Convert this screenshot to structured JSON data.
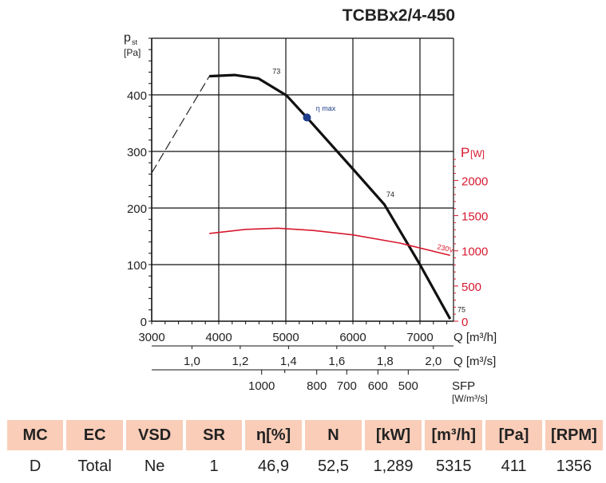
{
  "title": "TCBBx2/4-450",
  "chart_data": {
    "type": "line",
    "x_axis": {
      "label": "Q [m³/h]",
      "range": [
        3000,
        7500
      ],
      "ticks": [
        3000,
        4000,
        5000,
        6000,
        7000
      ]
    },
    "x_axis_secondary": {
      "label": "Q [m³/s]",
      "ticks": [
        "1,0",
        "1,2",
        "1,4",
        "1,6",
        "1,8",
        "2,0"
      ],
      "tick_values": [
        1.0,
        1.2,
        1.4,
        1.6,
        1.8,
        2.0
      ]
    },
    "sfp_axis": {
      "label": "SFP",
      "unit": "[W/m³/s]",
      "ticks": [
        "1000",
        "800",
        "700",
        "600",
        "500"
      ],
      "tick_values": [
        1000,
        800,
        700,
        600,
        500
      ]
    },
    "y_axis": {
      "label": "p",
      "label_sub": "st",
      "unit": "[Pa]",
      "range": [
        0,
        500
      ],
      "ticks": [
        0,
        100,
        200,
        300,
        400
      ]
    },
    "y_axis_right": {
      "label": "P",
      "unit": "[W]",
      "color": "#d7192f",
      "ticks": [
        0,
        500,
        1000,
        1500,
        2000
      ]
    },
    "grid": true,
    "series": [
      {
        "axis": "left",
        "style": "dashed",
        "color": "#222222",
        "x": [
          3000,
          3860
        ],
        "y": [
          262,
          433
        ]
      },
      {
        "axis": "left",
        "style": "solid",
        "color": "#111111",
        "x": [
          3860,
          4235,
          4590,
          5010,
          5320,
          6000,
          6470,
          7000,
          7450
        ],
        "y": [
          433,
          435,
          429,
          399,
          359,
          269,
          206,
          100,
          4
        ]
      },
      {
        "name": "230V",
        "axis": "right",
        "style": "solid",
        "color": "#d7192f",
        "x": [
          3860,
          4400,
          4880,
          5400,
          6000,
          6700,
          7450
        ],
        "y": [
          1247,
          1305,
          1322,
          1290,
          1227,
          1110,
          935
        ]
      }
    ],
    "annotations": [
      {
        "text": "73",
        "x": 4800,
        "y": 437
      },
      {
        "text": "74",
        "x": 6500,
        "y": 220
      },
      {
        "text": "75",
        "x": 7560,
        "y": 16
      },
      {
        "text": "230V",
        "x": 7250,
        "y": 128
      },
      {
        "text": "η max",
        "x": 5450,
        "y": 372
      }
    ],
    "marker": {
      "label": "η max",
      "x": 5315,
      "y": 360,
      "color": "#1f3d8a"
    }
  },
  "table": {
    "headers": [
      "MC",
      "EC",
      "VSD",
      "SR",
      "η[%]",
      "N",
      "[kW]",
      "[m³/h]",
      "[Pa]",
      "[RPM]"
    ],
    "values": [
      "D",
      "Total",
      "Ne",
      "1",
      "46,9",
      "52,5",
      "1,289",
      "5315",
      "411",
      "1356"
    ],
    "header_color": "#f9cdb8"
  }
}
